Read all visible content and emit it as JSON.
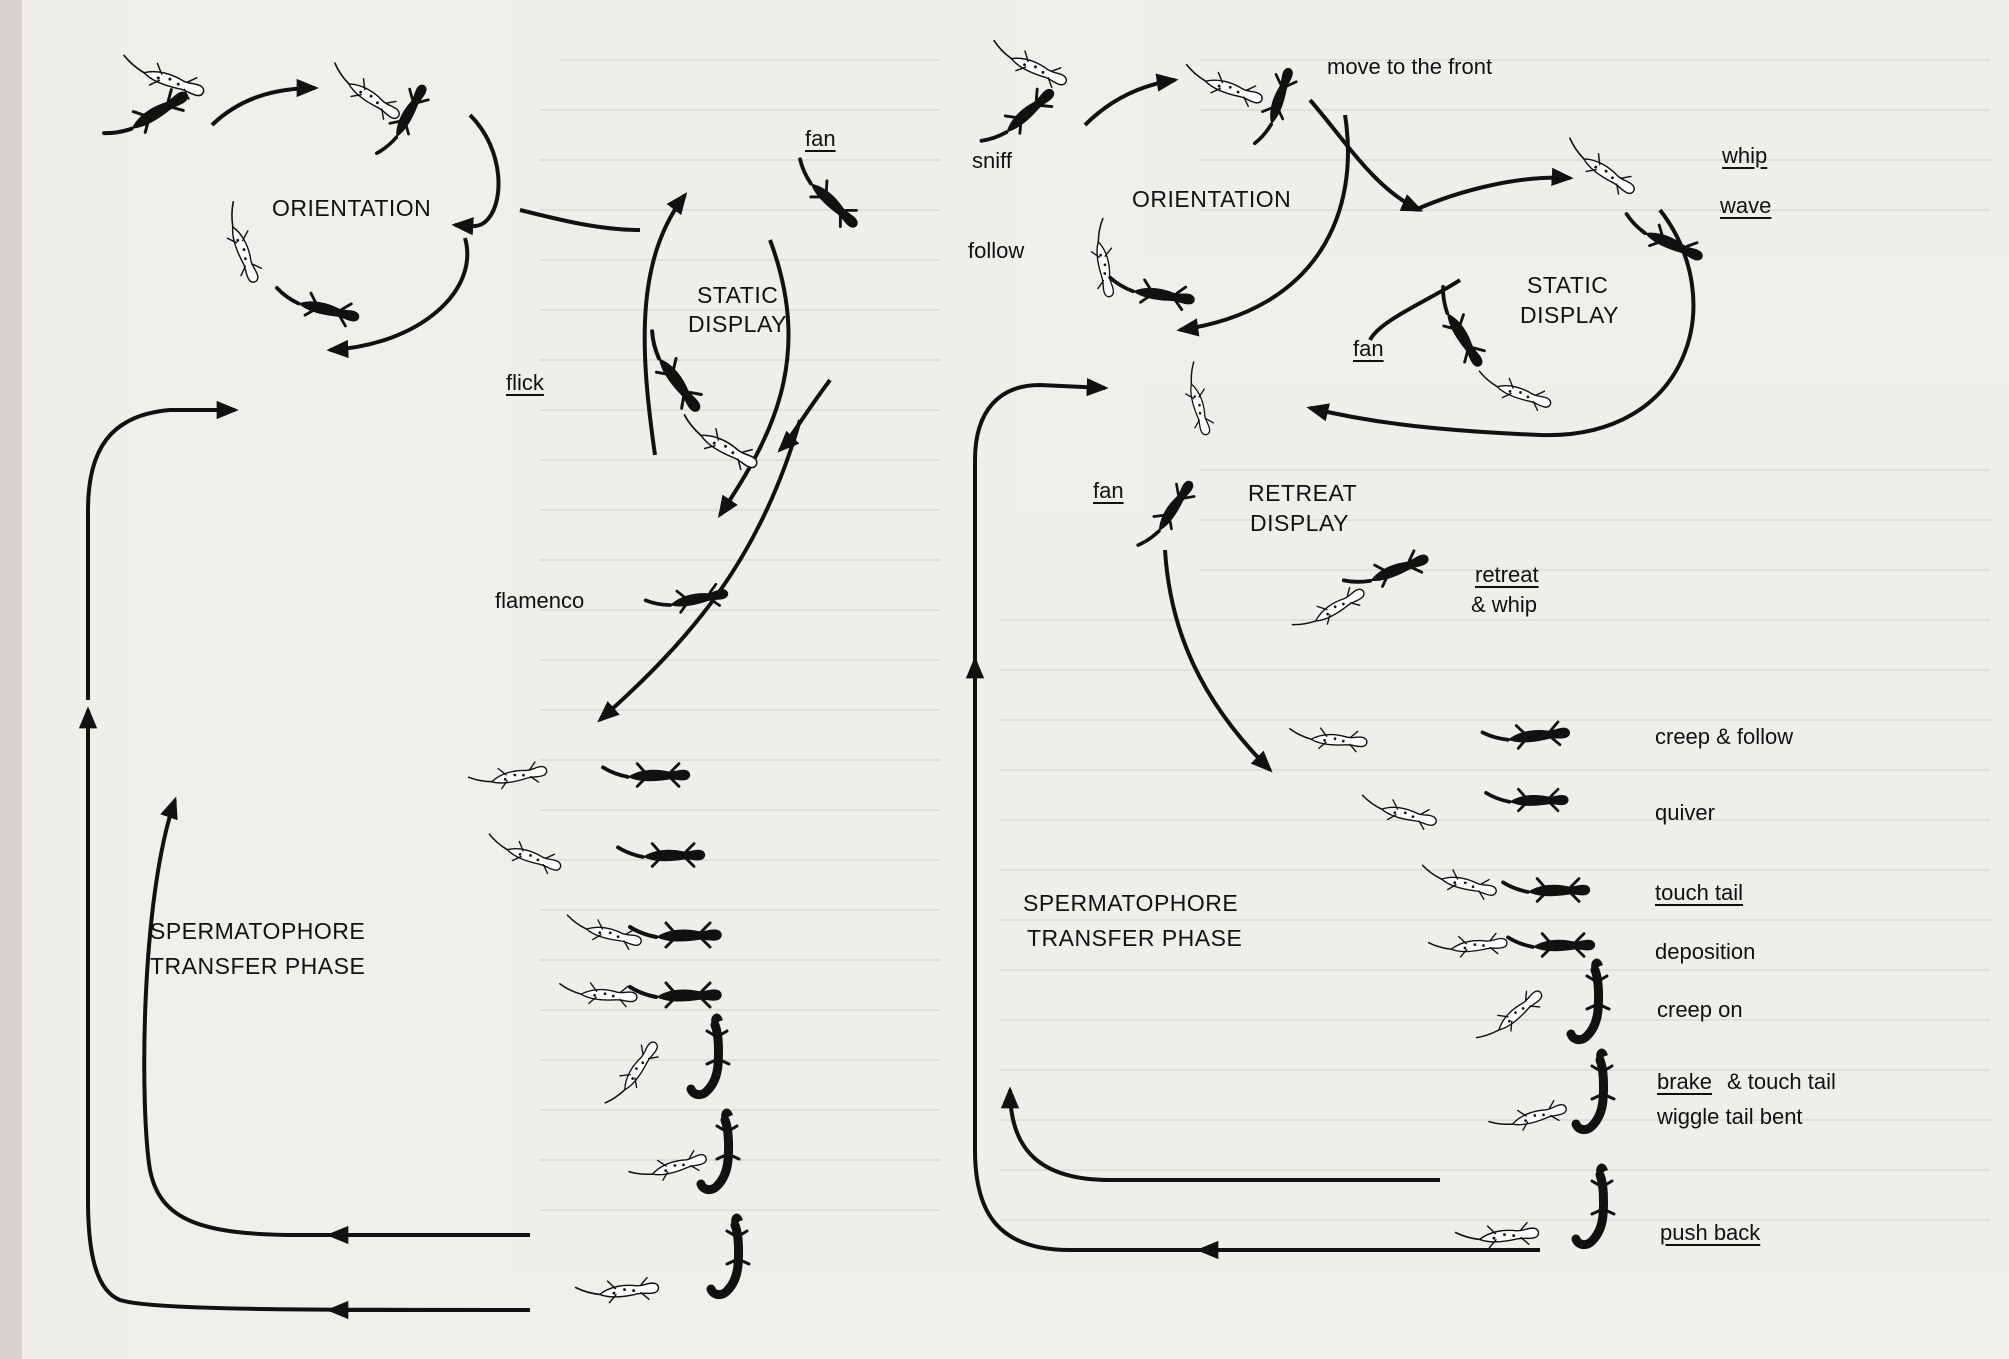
{
  "left_diagram": {
    "phases": {
      "orientation": "ORIENTATION",
      "static_display": [
        "STATIC",
        "DISPLAY"
      ],
      "spermatophore": [
        "SPERMATOPHORE",
        "TRANSFER PHASE"
      ]
    },
    "behaviors": {
      "fan": "fan",
      "flick": "flick",
      "flamenco": "flamenco"
    }
  },
  "right_diagram": {
    "phases": {
      "orientation": "ORIENTATION",
      "static_display": [
        "STATIC",
        "DISPLAY"
      ],
      "retreat_display": [
        "RETREAT",
        "DISPLAY"
      ],
      "spermatophore": [
        "SPERMATOPHORE",
        "TRANSFER PHASE"
      ]
    },
    "behaviors": {
      "move_front": "move to the front",
      "sniff": "sniff",
      "follow": "follow",
      "whip": "whip",
      "wave": "wave",
      "fan_static": "fan",
      "fan_retreat": "fan",
      "retreat_whip": [
        "retreat",
        "& whip"
      ],
      "creep_follow": "creep & follow",
      "quiver": "quiver",
      "touch_tail": "touch tail",
      "deposition": "deposition",
      "creep_on": "creep on",
      "brake": "brake",
      "and_touch_tail": "& touch tail",
      "wiggle_tail_bent": "wiggle tail bent",
      "push_back": "push back"
    }
  }
}
